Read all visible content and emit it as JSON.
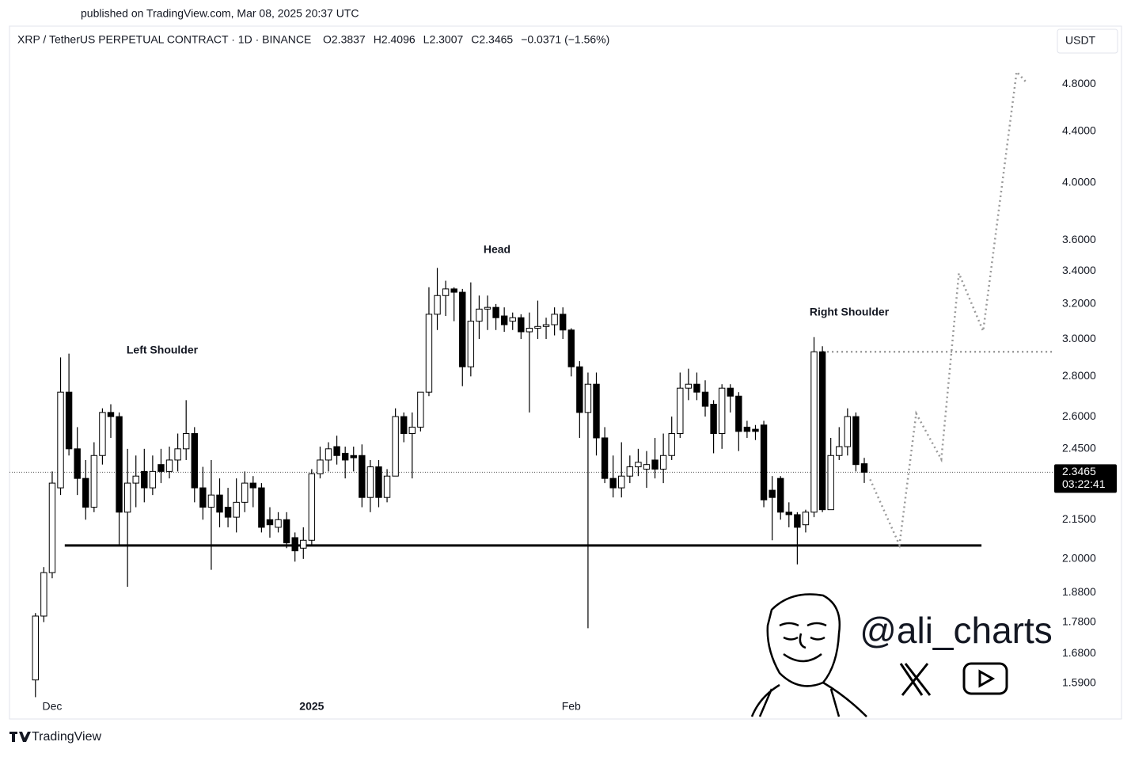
{
  "published": "published on TradingView.com, Mar 08, 2025 20:37 UTC",
  "brand": "TradingView",
  "handle": "@ali_charts",
  "chart_data": {
    "type": "candlestick",
    "title": "XRP / TetherUS PERPETUAL CONTRACT · 1D · BINANCE",
    "header_values": [
      {
        "value": 2.3837,
        "label": "O2.3837"
      },
      {
        "value": 2.4096,
        "label": "H2.4096"
      },
      {
        "value": 2.3007,
        "label": "L2.3007"
      },
      {
        "value": 2.3465,
        "label": "C2.3465"
      },
      {
        "value": -0.0371,
        "label": "−0.0371 (−1.56%)"
      }
    ],
    "currency": "USDT",
    "up_color": "#ffffff",
    "down_color": "#000000",
    "wick_color": "#000000",
    "open": [
      1.6,
      1.8,
      1.95,
      2.28,
      2.72,
      2.45,
      2.32,
      2.2,
      2.42,
      2.62,
      2.6,
      2.18,
      2.3,
      2.35,
      2.28,
      2.38,
      2.35,
      2.4,
      2.45,
      2.52,
      2.28,
      2.2,
      2.25,
      2.2,
      2.16,
      2.22,
      2.3,
      2.28,
      2.15,
      2.12,
      2.15,
      2.08,
      2.04,
      2.07,
      2.34,
      2.4,
      2.46,
      2.43,
      2.42,
      2.42,
      2.24,
      2.37,
      2.24,
      2.33,
      2.6,
      2.52,
      2.55,
      2.72,
      3.14,
      3.25,
      3.29,
      3.27,
      2.85,
      3.1,
      3.17,
      3.18,
      3.13,
      3.1,
      3.12,
      3.04,
      3.06,
      3.07,
      3.08,
      3.14,
      3.05,
      2.85,
      2.62,
      2.76,
      2.5,
      2.32,
      2.28,
      2.33,
      2.37,
      2.36,
      2.4,
      2.36,
      2.42,
      2.52,
      2.74,
      2.76,
      2.72,
      2.66,
      2.52,
      2.74,
      2.7,
      2.55,
      2.54,
      2.56,
      2.27,
      2.32,
      2.18,
      2.17,
      2.13,
      2.18,
      2.93,
      2.19,
      2.42,
      2.46,
      2.6,
      2.3837
    ],
    "high": [
      1.81,
      1.97,
      2.35,
      2.9,
      2.92,
      2.55,
      2.4,
      2.48,
      2.64,
      2.66,
      2.62,
      2.45,
      2.42,
      2.45,
      2.42,
      2.45,
      2.46,
      2.52,
      2.68,
      2.55,
      2.37,
      2.4,
      2.32,
      2.28,
      2.32,
      2.35,
      2.33,
      2.3,
      2.2,
      2.18,
      2.18,
      2.1,
      2.12,
      2.36,
      2.46,
      2.48,
      2.51,
      2.46,
      2.46,
      2.47,
      2.4,
      2.4,
      2.36,
      2.64,
      2.62,
      2.62,
      2.72,
      3.3,
      3.42,
      3.34,
      3.3,
      3.29,
      3.33,
      3.25,
      3.25,
      3.2,
      3.18,
      3.15,
      3.14,
      3.15,
      3.22,
      3.12,
      3.18,
      3.18,
      3.06,
      2.88,
      2.82,
      2.82,
      2.55,
      2.42,
      2.48,
      2.42,
      2.45,
      2.44,
      2.5,
      2.52,
      2.6,
      2.82,
      2.84,
      2.82,
      2.78,
      2.68,
      2.76,
      2.76,
      2.72,
      2.58,
      2.56,
      2.58,
      2.33,
      2.33,
      2.22,
      2.18,
      2.19,
      3.01,
      2.96,
      2.5,
      2.55,
      2.64,
      2.62,
      2.4096
    ],
    "low": [
      1.55,
      1.78,
      1.93,
      2.25,
      2.42,
      2.25,
      2.15,
      2.18,
      2.38,
      2.5,
      2.05,
      1.9,
      2.2,
      2.22,
      2.25,
      2.3,
      2.32,
      2.35,
      2.4,
      2.22,
      2.15,
      1.96,
      2.12,
      2.12,
      2.1,
      2.18,
      2.2,
      2.1,
      2.08,
      2.1,
      2.04,
      1.99,
      2.0,
      2.05,
      2.32,
      2.35,
      2.38,
      2.32,
      2.35,
      2.2,
      2.18,
      2.2,
      2.22,
      2.33,
      2.48,
      2.32,
      2.53,
      2.7,
      3.05,
      3.13,
      3.1,
      2.75,
      2.8,
      3.0,
      3.05,
      3.05,
      3.04,
      3.05,
      3.0,
      2.62,
      3.0,
      3.0,
      3.02,
      3.0,
      2.8,
      2.5,
      1.76,
      2.42,
      2.3,
      2.24,
      2.24,
      2.3,
      2.33,
      2.28,
      2.32,
      2.3,
      2.4,
      2.5,
      2.68,
      2.68,
      2.6,
      2.43,
      2.45,
      2.62,
      2.44,
      2.5,
      2.49,
      2.2,
      2.07,
      2.15,
      2.12,
      1.98,
      2.1,
      2.16,
      2.18,
      2.2,
      2.4,
      2.42,
      2.35,
      2.3007
    ],
    "close": [
      1.8,
      1.95,
      2.3,
      2.72,
      2.45,
      2.32,
      2.2,
      2.42,
      2.62,
      2.6,
      2.18,
      2.3,
      2.33,
      2.28,
      2.35,
      2.35,
      2.4,
      2.45,
      2.52,
      2.28,
      2.2,
      2.25,
      2.18,
      2.16,
      2.22,
      2.3,
      2.28,
      2.12,
      2.13,
      2.15,
      2.06,
      2.03,
      2.07,
      2.34,
      2.4,
      2.45,
      2.42,
      2.4,
      2.41,
      2.24,
      2.37,
      2.24,
      2.33,
      2.6,
      2.52,
      2.55,
      2.72,
      3.14,
      3.25,
      3.29,
      3.27,
      2.85,
      3.1,
      3.17,
      3.18,
      3.12,
      3.08,
      3.12,
      3.04,
      3.06,
      3.07,
      3.08,
      3.14,
      3.05,
      2.85,
      2.62,
      2.76,
      2.5,
      2.32,
      2.28,
      2.33,
      2.37,
      2.39,
      2.38,
      2.36,
      2.42,
      2.52,
      2.74,
      2.76,
      2.72,
      2.65,
      2.52,
      2.74,
      2.7,
      2.53,
      2.53,
      2.53,
      2.23,
      2.24,
      2.18,
      2.17,
      2.12,
      2.18,
      2.93,
      2.19,
      2.42,
      2.46,
      2.6,
      2.38,
      2.3465
    ],
    "log_scale": true,
    "xlim": [
      -3.1,
      121.5
    ],
    "xticks": [
      {
        "value": 2,
        "label": "Dec"
      },
      {
        "value": 33,
        "label": "2025"
      },
      {
        "value": 64,
        "label": "Feb"
      }
    ],
    "ylim": [
      1.551,
      5.06
    ],
    "yticks": [
      {
        "value": 1.59,
        "label": "1.5900"
      },
      {
        "value": 1.68,
        "label": "1.6800"
      },
      {
        "value": 1.78,
        "label": "1.7800"
      },
      {
        "value": 1.88,
        "label": "1.8800"
      },
      {
        "value": 2.0,
        "label": "2.0000"
      },
      {
        "value": 2.15,
        "label": "2.1500"
      },
      {
        "value": 2.45,
        "label": "2.4500"
      },
      {
        "value": 2.6,
        "label": "2.6000"
      },
      {
        "value": 2.8,
        "label": "2.8000"
      },
      {
        "value": 3.0,
        "label": "3.0000"
      },
      {
        "value": 3.2,
        "label": "3.2000"
      },
      {
        "value": 3.4,
        "label": "3.4000"
      },
      {
        "value": 3.6,
        "label": "3.6000"
      },
      {
        "value": 4.0,
        "label": "4.0000"
      },
      {
        "value": 4.4,
        "label": "4.4000"
      },
      {
        "value": 4.8,
        "label": "4.8000"
      }
    ],
    "last_price": 2.3465,
    "countdown": "03:22:41",
    "neckline": {
      "value": 2.05,
      "x": [
        3.5,
        113
      ]
    },
    "resistance": {
      "value": 2.93,
      "x": [
        94,
        121.5
      ]
    },
    "projection": {
      "x": [
        99.7,
        103.2,
        105.2,
        108.2,
        110.3,
        113.2,
        117.2,
        118.3
      ],
      "y": [
        2.316,
        2.052,
        2.615,
        2.403,
        3.386,
        3.044,
        4.91,
        4.82
      ]
    },
    "annotations": [
      "Left Shoulder",
      "Head",
      "Right Shoulder"
    ]
  }
}
